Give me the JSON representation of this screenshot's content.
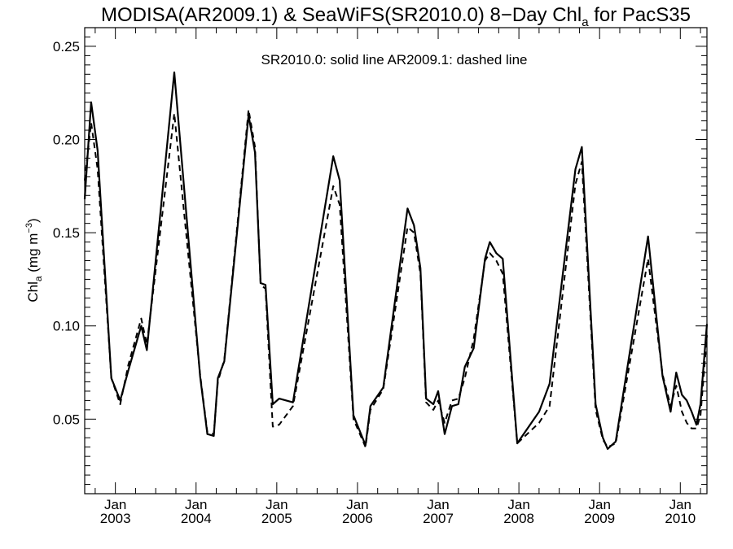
{
  "chart_data": {
    "type": "line",
    "title": {
      "main": "MODISA(AR2009.1) & SeaWiFS(SR2010.0) 8−Day Chl",
      "subscript": "a",
      "tail": " for PacS35"
    },
    "annotation": "SR2010.0: solid line   AR2009.1: dashed line",
    "ylabel": {
      "main": "Chl",
      "subscript": "a",
      "unit_open": " (mg m",
      "unit_sup": "−3",
      "unit_close": ")"
    },
    "xlabel": "",
    "ylim": [
      0.01,
      0.26
    ],
    "xlim": [
      2002.62,
      2010.33
    ],
    "y_ticks": [
      {
        "value": 0.05,
        "label": "0.05"
      },
      {
        "value": 0.1,
        "label": "0.10"
      },
      {
        "value": 0.15,
        "label": "0.15"
      },
      {
        "value": 0.2,
        "label": "0.20"
      },
      {
        "value": 0.25,
        "label": "0.25"
      }
    ],
    "x_ticks": [
      {
        "value": 2003.0,
        "month": "Jan",
        "year": "2003"
      },
      {
        "value": 2004.0,
        "month": "Jan",
        "year": "2004"
      },
      {
        "value": 2005.0,
        "month": "Jan",
        "year": "2005"
      },
      {
        "value": 2006.0,
        "month": "Jan",
        "year": "2006"
      },
      {
        "value": 2007.0,
        "month": "Jan",
        "year": "2007"
      },
      {
        "value": 2008.0,
        "month": "Jan",
        "year": "2008"
      },
      {
        "value": 2009.0,
        "month": "Jan",
        "year": "2009"
      },
      {
        "value": 2010.0,
        "month": "Jan",
        "year": "2010"
      }
    ],
    "grid": false,
    "legend": "annotation-top",
    "series": [
      {
        "label": "SR2010.0",
        "style": "solid",
        "color": "#000000",
        "points": [
          [
            2002.62,
            0.168
          ],
          [
            2002.7,
            0.22
          ],
          [
            2002.78,
            0.194
          ],
          [
            2002.95,
            0.072
          ],
          [
            2003.06,
            0.06
          ],
          [
            2003.16,
            0.076
          ],
          [
            2003.32,
            0.1
          ],
          [
            2003.39,
            0.087
          ],
          [
            2003.73,
            0.236
          ],
          [
            2004.05,
            0.073
          ],
          [
            2004.14,
            0.042
          ],
          [
            2004.22,
            0.041
          ],
          [
            2004.27,
            0.072
          ],
          [
            2004.35,
            0.081
          ],
          [
            2004.65,
            0.213
          ],
          [
            2004.73,
            0.193
          ],
          [
            2004.8,
            0.123
          ],
          [
            2004.86,
            0.122
          ],
          [
            2004.95,
            0.058
          ],
          [
            2005.03,
            0.061
          ],
          [
            2005.2,
            0.059
          ],
          [
            2005.7,
            0.191
          ],
          [
            2005.78,
            0.178
          ],
          [
            2005.95,
            0.052
          ],
          [
            2006.1,
            0.036
          ],
          [
            2006.16,
            0.057
          ],
          [
            2006.32,
            0.067
          ],
          [
            2006.62,
            0.163
          ],
          [
            2006.7,
            0.154
          ],
          [
            2006.78,
            0.131
          ],
          [
            2006.85,
            0.061
          ],
          [
            2006.94,
            0.058
          ],
          [
            2007.0,
            0.065
          ],
          [
            2007.08,
            0.042
          ],
          [
            2007.17,
            0.057
          ],
          [
            2007.25,
            0.058
          ],
          [
            2007.33,
            0.078
          ],
          [
            2007.44,
            0.088
          ],
          [
            2007.58,
            0.136
          ],
          [
            2007.64,
            0.145
          ],
          [
            2007.72,
            0.139
          ],
          [
            2007.8,
            0.136
          ],
          [
            2007.98,
            0.037
          ],
          [
            2008.25,
            0.054
          ],
          [
            2008.38,
            0.069
          ],
          [
            2008.7,
            0.184
          ],
          [
            2008.78,
            0.196
          ],
          [
            2008.95,
            0.058
          ],
          [
            2009.04,
            0.04
          ],
          [
            2009.1,
            0.034
          ],
          [
            2009.2,
            0.038
          ],
          [
            2009.6,
            0.148
          ],
          [
            2009.78,
            0.073
          ],
          [
            2009.88,
            0.054
          ],
          [
            2009.95,
            0.075
          ],
          [
            2010.02,
            0.063
          ],
          [
            2010.08,
            0.06
          ],
          [
            2010.14,
            0.054
          ],
          [
            2010.2,
            0.047
          ],
          [
            2010.25,
            0.058
          ],
          [
            2010.33,
            0.101
          ]
        ]
      },
      {
        "label": "AR2009.1",
        "style": "dashed",
        "color": "#000000",
        "points": [
          [
            2002.62,
            0.178
          ],
          [
            2002.7,
            0.209
          ],
          [
            2002.78,
            0.184
          ],
          [
            2002.95,
            0.072
          ],
          [
            2003.06,
            0.058
          ],
          [
            2003.16,
            0.079
          ],
          [
            2003.32,
            0.104
          ],
          [
            2003.39,
            0.09
          ],
          [
            2003.73,
            0.214
          ],
          [
            2004.05,
            0.074
          ],
          [
            2004.14,
            0.043
          ],
          [
            2004.22,
            0.042
          ],
          [
            2004.27,
            0.07
          ],
          [
            2004.35,
            0.082
          ],
          [
            2004.65,
            0.216
          ],
          [
            2004.73,
            0.196
          ],
          [
            2004.8,
            0.122
          ],
          [
            2004.86,
            0.12
          ],
          [
            2004.95,
            0.046
          ],
          [
            2005.03,
            0.047
          ],
          [
            2005.2,
            0.057
          ],
          [
            2005.7,
            0.175
          ],
          [
            2005.78,
            0.165
          ],
          [
            2005.95,
            0.05
          ],
          [
            2006.1,
            0.035
          ],
          [
            2006.16,
            0.055
          ],
          [
            2006.32,
            0.066
          ],
          [
            2006.62,
            0.153
          ],
          [
            2006.7,
            0.15
          ],
          [
            2006.78,
            0.128
          ],
          [
            2006.85,
            0.059
          ],
          [
            2006.94,
            0.055
          ],
          [
            2007.0,
            0.06
          ],
          [
            2007.08,
            0.048
          ],
          [
            2007.17,
            0.06
          ],
          [
            2007.25,
            0.061
          ],
          [
            2007.33,
            0.072
          ],
          [
            2007.44,
            0.093
          ],
          [
            2007.58,
            0.135
          ],
          [
            2007.64,
            0.139
          ],
          [
            2007.72,
            0.135
          ],
          [
            2007.8,
            0.128
          ],
          [
            2007.98,
            0.037
          ],
          [
            2008.25,
            0.048
          ],
          [
            2008.38,
            0.057
          ],
          [
            2008.7,
            0.176
          ],
          [
            2008.78,
            0.188
          ],
          [
            2008.95,
            0.055
          ],
          [
            2009.04,
            0.039
          ],
          [
            2009.1,
            0.035
          ],
          [
            2009.2,
            0.037
          ],
          [
            2009.6,
            0.136
          ],
          [
            2009.78,
            0.074
          ],
          [
            2009.88,
            0.057
          ],
          [
            2009.95,
            0.068
          ],
          [
            2010.02,
            0.054
          ],
          [
            2010.08,
            0.048
          ],
          [
            2010.14,
            0.045
          ],
          [
            2010.2,
            0.045
          ],
          [
            2010.25,
            0.052
          ],
          [
            2010.33,
            0.095
          ]
        ]
      }
    ]
  }
}
